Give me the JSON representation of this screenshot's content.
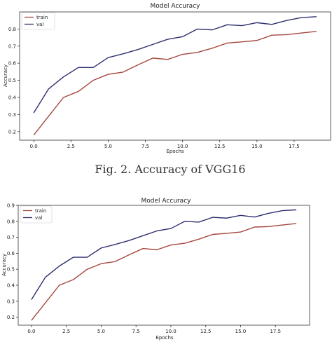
{
  "caption": "Fig. 2. Accuracy of VGG16",
  "colors": {
    "train": "#a5473d",
    "val": "#2e2f6e"
  },
  "chart_data": [
    {
      "type": "line",
      "title": "Model Accuracy",
      "xlabel": "Epochs",
      "ylabel": "Accuracy",
      "x": [
        0,
        1,
        2,
        3,
        4,
        5,
        6,
        7,
        8,
        9,
        10,
        11,
        12,
        13,
        14,
        15,
        16,
        17,
        18,
        19
      ],
      "xlim": [
        -0.95,
        19.95
      ],
      "ylim": [
        0.15,
        0.9
      ],
      "xticks": [
        "0.0",
        "2.5",
        "5.0",
        "7.5",
        "10.0",
        "12.5",
        "15.0",
        "17.5"
      ],
      "yticks": [
        "0.2",
        "0.3",
        "0.4",
        "0.5",
        "0.6",
        "0.7",
        "0.8"
      ],
      "legend": "top-left",
      "grid": false,
      "series": [
        {
          "name": "train",
          "values": [
            0.18,
            0.29,
            0.4,
            0.435,
            0.5,
            0.535,
            0.548,
            0.59,
            0.63,
            0.622,
            0.652,
            0.663,
            0.688,
            0.718,
            0.725,
            0.733,
            0.764,
            0.767,
            0.777,
            0.786
          ]
        },
        {
          "name": "val",
          "values": [
            0.31,
            0.45,
            0.52,
            0.575,
            0.575,
            0.633,
            0.655,
            0.68,
            0.71,
            0.74,
            0.755,
            0.8,
            0.795,
            0.825,
            0.82,
            0.837,
            0.827,
            0.85,
            0.867,
            0.872
          ]
        }
      ]
    },
    {
      "type": "line",
      "title": "Model Accuracy",
      "xlabel": "Epochs",
      "ylabel": "Accuracy",
      "x": [
        0,
        1,
        2,
        3,
        4,
        5,
        6,
        7,
        8,
        9,
        10,
        11,
        12,
        13,
        14,
        15,
        16,
        17,
        18,
        19
      ],
      "xlim": [
        -0.95,
        19.95
      ],
      "ylim": [
        0.15,
        0.9
      ],
      "xticks": [
        "0.0",
        "2.5",
        "5.0",
        "7.5",
        "10.0",
        "12.5",
        "15.0",
        "17.5"
      ],
      "yticks": [
        "0.2",
        "0.3",
        "0.4",
        "0.5",
        "0.6",
        "0.7",
        "0.8",
        "0.9"
      ],
      "legend": "top-left",
      "grid": false,
      "series": [
        {
          "name": "train",
          "values": [
            0.18,
            0.29,
            0.4,
            0.435,
            0.5,
            0.535,
            0.548,
            0.59,
            0.63,
            0.622,
            0.652,
            0.663,
            0.688,
            0.718,
            0.725,
            0.733,
            0.764,
            0.767,
            0.777,
            0.786
          ]
        },
        {
          "name": "val",
          "values": [
            0.31,
            0.45,
            0.52,
            0.575,
            0.575,
            0.633,
            0.655,
            0.68,
            0.71,
            0.74,
            0.755,
            0.8,
            0.795,
            0.825,
            0.82,
            0.837,
            0.827,
            0.85,
            0.867,
            0.872
          ]
        }
      ]
    }
  ]
}
